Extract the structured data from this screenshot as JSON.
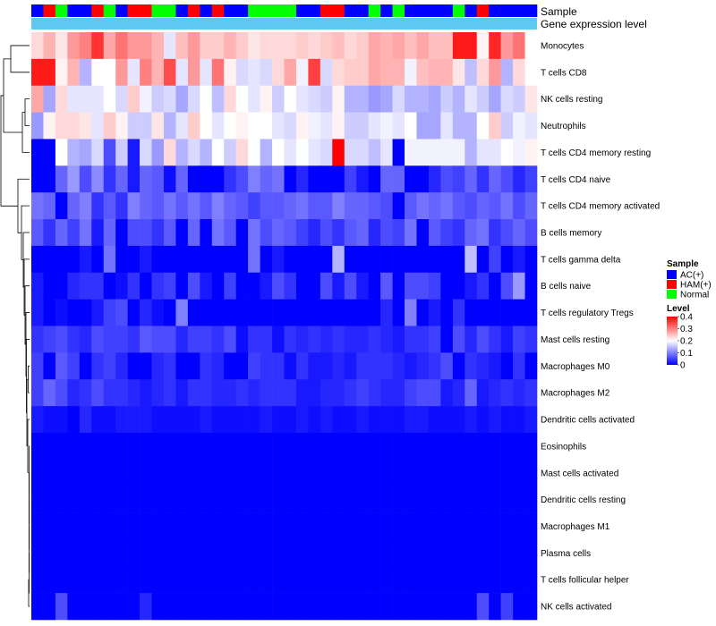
{
  "chart_data": {
    "type": "heatmap",
    "title": "",
    "annotation_labels": [
      "Sample",
      "Gene expression level"
    ],
    "rows": [
      "Monocytes",
      "T cells CD8",
      "NK cells resting",
      "Neutrophils",
      "T cells CD4 memory resting",
      "T cells CD4 naive",
      "T cells CD4 memory activated",
      "B cells memory",
      "T cells gamma delta",
      "B cells naive",
      "T cells regulatory  Tregs",
      "Mast cells resting",
      "Macrophages M0",
      "Macrophages M2",
      "Dendritic cells activated",
      "Eosinophils",
      "Mast cells activated",
      "Dendritic cells resting",
      "Macrophages M1",
      "Plasma cells",
      "T cells follicular helper",
      "NK cells activated"
    ],
    "sample_groups": [
      "A",
      "H",
      "N",
      "A",
      "A",
      "H",
      "N",
      "A",
      "H",
      "H",
      "N",
      "N",
      "A",
      "H",
      "A",
      "H",
      "A",
      "A",
      "N",
      "N",
      "N",
      "N",
      "A",
      "A",
      "H",
      "H",
      "A",
      "A",
      "N",
      "A",
      "N",
      "A",
      "A",
      "A",
      "A",
      "N",
      "A",
      "H",
      "A",
      "A",
      "A",
      "A"
    ],
    "sample_colors": {
      "A": "#0000ff",
      "H": "#ff0000",
      "N": "#00ff00"
    },
    "expression_color": "#5ec8f2",
    "legend_sample": {
      "title": "Sample",
      "entries": [
        {
          "key": "A",
          "label": "AC(+)",
          "color": "#0000ff"
        },
        {
          "key": "H",
          "label": "HAM(+)",
          "color": "#ff0000"
        },
        {
          "key": "N",
          "label": "Normal",
          "color": "#00ff00"
        }
      ]
    },
    "legend_level": {
      "title": "Level",
      "range": [
        0,
        0.4
      ],
      "ticks": [
        "0.4",
        "0.3",
        "0.2",
        "0.1",
        "0"
      ]
    },
    "color_scale": {
      "low": "#0000ff",
      "mid": "#ffffff",
      "high": "#ff0000",
      "low_value": 0,
      "mid_value": 0.2,
      "high_value": 0.4
    },
    "values": [
      [
        0.23,
        0.26,
        0.22,
        0.28,
        0.3,
        0.36,
        0.27,
        0.31,
        0.28,
        0.28,
        0.26,
        0.18,
        0.25,
        0.28,
        0.24,
        0.24,
        0.26,
        0.24,
        0.22,
        0.23,
        0.23,
        0.23,
        0.24,
        0.23,
        0.24,
        0.25,
        0.23,
        0.24,
        0.27,
        0.26,
        0.27,
        0.25,
        0.27,
        0.25,
        0.25,
        0.38,
        0.38,
        0.21,
        0.37,
        0.28,
        0.31,
        0.2
      ],
      [
        0.38,
        0.38,
        0.21,
        0.26,
        0.14,
        0.2,
        0.2,
        0.28,
        0.18,
        0.3,
        0.26,
        0.34,
        0.18,
        0.28,
        0.18,
        0.31,
        0.21,
        0.17,
        0.18,
        0.17,
        0.23,
        0.27,
        0.19,
        0.35,
        0.17,
        0.23,
        0.24,
        0.24,
        0.27,
        0.26,
        0.26,
        0.19,
        0.25,
        0.26,
        0.26,
        0.22,
        0.15,
        0.23,
        0.28,
        0.14,
        0.23,
        0.2
      ],
      [
        0.27,
        0.13,
        0.23,
        0.18,
        0.18,
        0.18,
        0.2,
        0.17,
        0.24,
        0.19,
        0.16,
        0.17,
        0.13,
        0.17,
        0.2,
        0.15,
        0.23,
        0.2,
        0.18,
        0.21,
        0.16,
        0.2,
        0.18,
        0.17,
        0.16,
        0.21,
        0.14,
        0.14,
        0.12,
        0.13,
        0.17,
        0.14,
        0.14,
        0.13,
        0.16,
        0.14,
        0.18,
        0.16,
        0.13,
        0.17,
        0.16,
        0.22
      ],
      [
        0.12,
        0.21,
        0.23,
        0.23,
        0.22,
        0.18,
        0.24,
        0.21,
        0.16,
        0.16,
        0.22,
        0.14,
        0.18,
        0.24,
        0.2,
        0.18,
        0.2,
        0.21,
        0.2,
        0.2,
        0.18,
        0.17,
        0.21,
        0.19,
        0.18,
        0.21,
        0.16,
        0.16,
        0.18,
        0.19,
        0.18,
        0.2,
        0.13,
        0.13,
        0.18,
        0.14,
        0.14,
        0.2,
        0.24,
        0.16,
        0.19,
        0.18
      ],
      [
        0.0,
        0.0,
        0.2,
        0.14,
        0.13,
        0.17,
        0.06,
        0.16,
        0.02,
        0.17,
        0.12,
        0.23,
        0.14,
        0.17,
        0.14,
        0.2,
        0.16,
        0.23,
        0.2,
        0.14,
        0.2,
        0.18,
        0.2,
        0.18,
        0.17,
        0.4,
        0.17,
        0.17,
        0.15,
        0.18,
        0.0,
        0.19,
        0.19,
        0.19,
        0.19,
        0.19,
        0.14,
        0.18,
        0.18,
        0.2,
        0.19,
        0.21
      ],
      [
        0.0,
        0.0,
        0.08,
        0.12,
        0.06,
        0.11,
        0.04,
        0.08,
        0.02,
        0.08,
        0.07,
        0.01,
        0.08,
        0.0,
        0.0,
        0.0,
        0.04,
        0.06,
        0.1,
        0.08,
        0.09,
        0.0,
        0.03,
        0.0,
        0.0,
        0.0,
        0.05,
        0.02,
        0.0,
        0.08,
        0.08,
        0.0,
        0.0,
        0.03,
        0.06,
        0.05,
        0.08,
        0.04,
        0.08,
        0.06,
        0.03,
        0.05
      ],
      [
        0.09,
        0.08,
        0.0,
        0.08,
        0.1,
        0.04,
        0.07,
        0.04,
        0.1,
        0.08,
        0.07,
        0.09,
        0.07,
        0.09,
        0.07,
        0.1,
        0.08,
        0.07,
        0.05,
        0.07,
        0.07,
        0.08,
        0.09,
        0.07,
        0.07,
        0.1,
        0.08,
        0.08,
        0.07,
        0.06,
        0.0,
        0.07,
        0.09,
        0.08,
        0.09,
        0.07,
        0.06,
        0.08,
        0.07,
        0.09,
        0.06,
        0.08
      ],
      [
        0.07,
        0.04,
        0.08,
        0.05,
        0.09,
        0.02,
        0.08,
        0.0,
        0.06,
        0.06,
        0.04,
        0.07,
        0.0,
        0.08,
        0.0,
        0.09,
        0.07,
        0.0,
        0.09,
        0.06,
        0.08,
        0.07,
        0.05,
        0.03,
        0.06,
        0.04,
        0.07,
        0.08,
        0.03,
        0.06,
        0.05,
        0.09,
        0.0,
        0.07,
        0.05,
        0.04,
        0.08,
        0.09,
        0.04,
        0.06,
        0.08,
        0.06
      ],
      [
        0.0,
        0.0,
        0.0,
        0.0,
        0.02,
        0.0,
        0.09,
        0.0,
        0.0,
        0.02,
        0.0,
        0.0,
        0.0,
        0.0,
        0.0,
        0.0,
        0.0,
        0.0,
        0.09,
        0.0,
        0.02,
        0.0,
        0.0,
        0.0,
        0.0,
        0.14,
        0.0,
        0.0,
        0.0,
        0.0,
        0.0,
        0.0,
        0.0,
        0.0,
        0.0,
        0.0,
        0.15,
        0.0,
        0.05,
        0.0,
        0.02,
        0.0
      ],
      [
        0.02,
        0.0,
        0.0,
        0.03,
        0.04,
        0.04,
        0.0,
        0.01,
        0.04,
        0.0,
        0.04,
        0.05,
        0.0,
        0.06,
        0.02,
        0.0,
        0.05,
        0.0,
        0.0,
        0.02,
        0.06,
        0.04,
        0.0,
        0.0,
        0.06,
        0.02,
        0.06,
        0.02,
        0.0,
        0.07,
        0.0,
        0.06,
        0.06,
        0.05,
        0.0,
        0.0,
        0.02,
        0.04,
        0.0,
        0.06,
        0.12,
        0.0
      ],
      [
        0.02,
        0.0,
        0.01,
        0.0,
        0.0,
        0.02,
        0.05,
        0.06,
        0.0,
        0.03,
        0.01,
        0.0,
        0.1,
        0.0,
        0.0,
        0.0,
        0.0,
        0.0,
        0.0,
        0.0,
        0.0,
        0.0,
        0.0,
        0.0,
        0.0,
        0.0,
        0.0,
        0.0,
        0.0,
        0.03,
        0.0,
        0.1,
        0.0,
        0.02,
        0.0,
        0.04,
        0.0,
        0.0,
        0.0,
        0.0,
        0.0,
        0.0
      ],
      [
        0.04,
        0.05,
        0.06,
        0.04,
        0.03,
        0.06,
        0.05,
        0.05,
        0.04,
        0.07,
        0.06,
        0.06,
        0.03,
        0.05,
        0.05,
        0.04,
        0.06,
        0.01,
        0.04,
        0.04,
        0.01,
        0.04,
        0.03,
        0.04,
        0.03,
        0.04,
        0.03,
        0.03,
        0.04,
        0.03,
        0.02,
        0.04,
        0.04,
        0.05,
        0.0,
        0.06,
        0.03,
        0.06,
        0.04,
        0.02,
        0.05,
        0.04
      ],
      [
        0.05,
        0.0,
        0.07,
        0.05,
        0.0,
        0.04,
        0.05,
        0.03,
        0.0,
        0.0,
        0.03,
        0.04,
        0.0,
        0.0,
        0.04,
        0.03,
        0.0,
        0.0,
        0.05,
        0.04,
        0.04,
        0.01,
        0.04,
        0.02,
        0.02,
        0.03,
        0.02,
        0.04,
        0.04,
        0.04,
        0.03,
        0.02,
        0.03,
        0.04,
        0.06,
        0.0,
        0.04,
        0.03,
        0.02,
        0.0,
        0.04,
        0.0
      ],
      [
        0.05,
        0.08,
        0.06,
        0.03,
        0.04,
        0.06,
        0.04,
        0.04,
        0.03,
        0.02,
        0.03,
        0.04,
        0.02,
        0.04,
        0.04,
        0.03,
        0.03,
        0.04,
        0.03,
        0.04,
        0.04,
        0.04,
        0.02,
        0.02,
        0.03,
        0.03,
        0.04,
        0.05,
        0.04,
        0.03,
        0.03,
        0.05,
        0.06,
        0.06,
        0.02,
        0.03,
        0.08,
        0.02,
        0.03,
        0.04,
        0.03,
        0.04
      ],
      [
        0.02,
        0.01,
        0.01,
        0.0,
        0.03,
        0.01,
        0.01,
        0.02,
        0.02,
        0.02,
        0.01,
        0.01,
        0.01,
        0.01,
        0.02,
        0.01,
        0.01,
        0.01,
        0.01,
        0.02,
        0.01,
        0.01,
        0.02,
        0.01,
        0.02,
        0.01,
        0.01,
        0.02,
        0.01,
        0.01,
        0.01,
        0.02,
        0.02,
        0.01,
        0.01,
        0.01,
        0.02,
        0.01,
        0.02,
        0.01,
        0.01,
        0.02
      ],
      [
        0.0,
        0.0,
        0.0,
        0.0,
        0.0,
        0.0,
        0.0,
        0.0,
        0.0,
        0.0,
        0.0,
        0.0,
        0.0,
        0.0,
        0.0,
        0.0,
        0.0,
        0.0,
        0.0,
        0.0,
        0.0,
        0.0,
        0.0,
        0.0,
        0.0,
        0.0,
        0.0,
        0.0,
        0.0,
        0.0,
        0.0,
        0.0,
        0.0,
        0.0,
        0.0,
        0.0,
        0.0,
        0.0,
        0.0,
        0.0,
        0.0,
        0.0
      ],
      [
        0.0,
        0.0,
        0.0,
        0.0,
        0.0,
        0.0,
        0.0,
        0.0,
        0.0,
        0.0,
        0.0,
        0.0,
        0.0,
        0.0,
        0.0,
        0.0,
        0.0,
        0.0,
        0.0,
        0.0,
        0.0,
        0.0,
        0.0,
        0.0,
        0.0,
        0.0,
        0.0,
        0.0,
        0.0,
        0.0,
        0.0,
        0.0,
        0.0,
        0.0,
        0.0,
        0.0,
        0.0,
        0.0,
        0.0,
        0.0,
        0.0,
        0.0
      ],
      [
        0.0,
        0.0,
        0.0,
        0.0,
        0.0,
        0.0,
        0.0,
        0.0,
        0.0,
        0.0,
        0.0,
        0.0,
        0.0,
        0.0,
        0.0,
        0.0,
        0.0,
        0.0,
        0.0,
        0.0,
        0.0,
        0.0,
        0.0,
        0.0,
        0.0,
        0.0,
        0.0,
        0.0,
        0.0,
        0.0,
        0.0,
        0.0,
        0.0,
        0.0,
        0.0,
        0.0,
        0.0,
        0.0,
        0.0,
        0.0,
        0.0,
        0.0
      ],
      [
        0.0,
        0.0,
        0.0,
        0.0,
        0.0,
        0.0,
        0.0,
        0.0,
        0.0,
        0.0,
        0.0,
        0.0,
        0.0,
        0.0,
        0.0,
        0.0,
        0.0,
        0.0,
        0.0,
        0.0,
        0.0,
        0.0,
        0.0,
        0.0,
        0.0,
        0.0,
        0.0,
        0.0,
        0.0,
        0.0,
        0.0,
        0.0,
        0.0,
        0.0,
        0.0,
        0.0,
        0.0,
        0.0,
        0.0,
        0.0,
        0.0,
        0.0
      ],
      [
        0.0,
        0.0,
        0.0,
        0.0,
        0.0,
        0.0,
        0.0,
        0.0,
        0.0,
        0.0,
        0.0,
        0.0,
        0.0,
        0.0,
        0.0,
        0.0,
        0.0,
        0.0,
        0.0,
        0.0,
        0.0,
        0.0,
        0.0,
        0.0,
        0.0,
        0.0,
        0.0,
        0.0,
        0.0,
        0.0,
        0.0,
        0.0,
        0.0,
        0.0,
        0.0,
        0.0,
        0.0,
        0.0,
        0.0,
        0.0,
        0.0,
        0.0
      ],
      [
        0.0,
        0.0,
        0.0,
        0.0,
        0.0,
        0.0,
        0.0,
        0.0,
        0.0,
        0.0,
        0.0,
        0.0,
        0.0,
        0.0,
        0.0,
        0.0,
        0.0,
        0.0,
        0.0,
        0.0,
        0.0,
        0.0,
        0.0,
        0.0,
        0.0,
        0.0,
        0.0,
        0.0,
        0.0,
        0.0,
        0.0,
        0.0,
        0.0,
        0.0,
        0.0,
        0.0,
        0.0,
        0.0,
        0.0,
        0.0,
        0.0,
        0.0
      ],
      [
        0.0,
        0.0,
        0.06,
        0.0,
        0.0,
        0.0,
        0.0,
        0.0,
        0.0,
        0.03,
        0.0,
        0.0,
        0.0,
        0.0,
        0.0,
        0.0,
        0.0,
        0.0,
        0.0,
        0.0,
        0.0,
        0.0,
        0.0,
        0.0,
        0.0,
        0.0,
        0.0,
        0.0,
        0.0,
        0.0,
        0.0,
        0.0,
        0.0,
        0.0,
        0.0,
        0.0,
        0.0,
        0.06,
        0.0,
        0.05,
        0.0,
        0.0
      ]
    ]
  }
}
